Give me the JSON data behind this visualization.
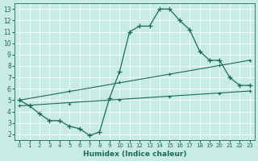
{
  "xlabel": "Humidex (Indice chaleur)",
  "xlim": [
    -0.5,
    23.5
  ],
  "ylim": [
    1.5,
    13.5
  ],
  "xticks": [
    0,
    1,
    2,
    3,
    4,
    5,
    6,
    7,
    8,
    9,
    10,
    11,
    12,
    13,
    14,
    15,
    16,
    17,
    18,
    19,
    20,
    21,
    22,
    23
  ],
  "yticks": [
    2,
    3,
    4,
    5,
    6,
    7,
    8,
    9,
    10,
    11,
    12,
    13
  ],
  "bg_color": "#c8ebe6",
  "line_color": "#1a6b5a",
  "grid_color": "#ffffff",
  "line1_x": [
    0,
    1,
    2,
    3,
    4,
    5,
    6,
    7,
    8,
    9,
    10,
    11,
    12,
    13,
    14,
    15,
    16,
    17,
    18,
    19,
    20,
    21,
    22,
    23
  ],
  "line1_y": [
    5.0,
    4.5,
    3.8,
    3.2,
    3.2,
    2.7,
    2.5,
    1.9,
    2.2,
    5.2,
    7.5,
    11.0,
    11.5,
    11.5,
    13.0,
    13.0,
    12.0,
    11.2,
    9.3,
    8.5,
    8.5,
    7.0,
    6.3,
    6.3
  ],
  "line2_x": [
    0,
    23
  ],
  "line2_y": [
    5.0,
    8.5
  ],
  "line3_x": [
    0,
    23
  ],
  "line3_y": [
    4.5,
    5.8
  ],
  "marker_x2": [
    0,
    5,
    10,
    15,
    20,
    23
  ],
  "marker_y2": [
    5.0,
    5.8,
    6.6,
    7.3,
    8.1,
    8.5
  ],
  "marker_x3": [
    0,
    5,
    10,
    15,
    20,
    23
  ],
  "marker_y3": [
    4.5,
    4.7,
    5.0,
    5.3,
    5.6,
    5.8
  ]
}
